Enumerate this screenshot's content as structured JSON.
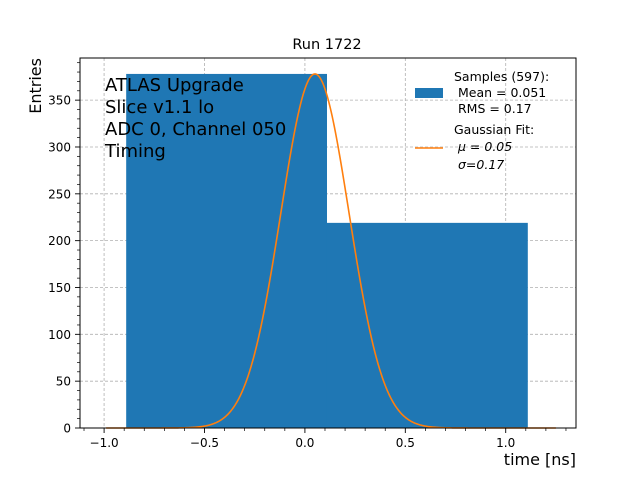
{
  "chart_data": {
    "type": "bar",
    "title": "Run 1722",
    "xlabel": "time [ns]",
    "ylabel": "Entries",
    "xlim": [
      -1.12,
      1.35
    ],
    "ylim": [
      0,
      395
    ],
    "xticks": [
      -1.0,
      -0.5,
      0.0,
      0.5,
      1.0
    ],
    "xtick_labels": [
      "−1.0",
      "−0.5",
      "0.0",
      "0.5",
      "1.0"
    ],
    "yticks": [
      0,
      50,
      100,
      150,
      200,
      250,
      300,
      350
    ],
    "ytick_labels": [
      "0",
      "50",
      "100",
      "150",
      "200",
      "250",
      "300",
      "350"
    ],
    "grid": true,
    "histogram": {
      "name": "Samples (597):",
      "color": "#1f77b4",
      "bins": [
        {
          "x0": -0.89,
          "x1": 0.11,
          "count": 378
        },
        {
          "x0": 0.11,
          "x1": 1.11,
          "count": 219
        }
      ]
    },
    "fit": {
      "name": "Gaussian Fit:",
      "type": "gaussian",
      "color": "#ff7f0e",
      "mu": 0.05,
      "sigma": 0.17,
      "amplitude": 378,
      "x_range": [
        -0.99,
        1.25
      ]
    },
    "info_lines": [
      "ATLAS Upgrade",
      "Slice v1.1 lo",
      "ADC 0, Channel 050",
      "Timing"
    ],
    "legend": {
      "placement": "top-right",
      "hist_lines": [
        "Samples (597):",
        " Mean = 0.051",
        " RMS = 0.17"
      ],
      "fit_lines": [
        "Gaussian Fit:",
        "μ = 0.05",
        "σ=0.17"
      ]
    }
  }
}
